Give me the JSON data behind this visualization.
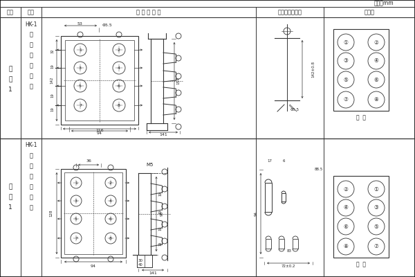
{
  "bg_color": "#ffffff",
  "unit_text": "单位：mm",
  "headers": [
    "图号",
    "结构",
    "外 形 尺 寸 图",
    "安装开孔尺寸图",
    "端子图"
  ],
  "col_dividers": [
    30,
    60,
    370,
    468,
    600
  ],
  "row1_label": [
    "附",
    "图",
    "1"
  ],
  "row2_label": [
    "附",
    "图",
    "1"
  ],
  "hk1": "HK-1",
  "row1_struct_chars": [
    "凸",
    "出",
    "式",
    "前",
    "接",
    "线"
  ],
  "row2_struct_chars": [
    "凸",
    "出",
    "式",
    "后",
    "接",
    "线"
  ],
  "front_view_label": "前  视",
  "back_view_label": "背  视"
}
